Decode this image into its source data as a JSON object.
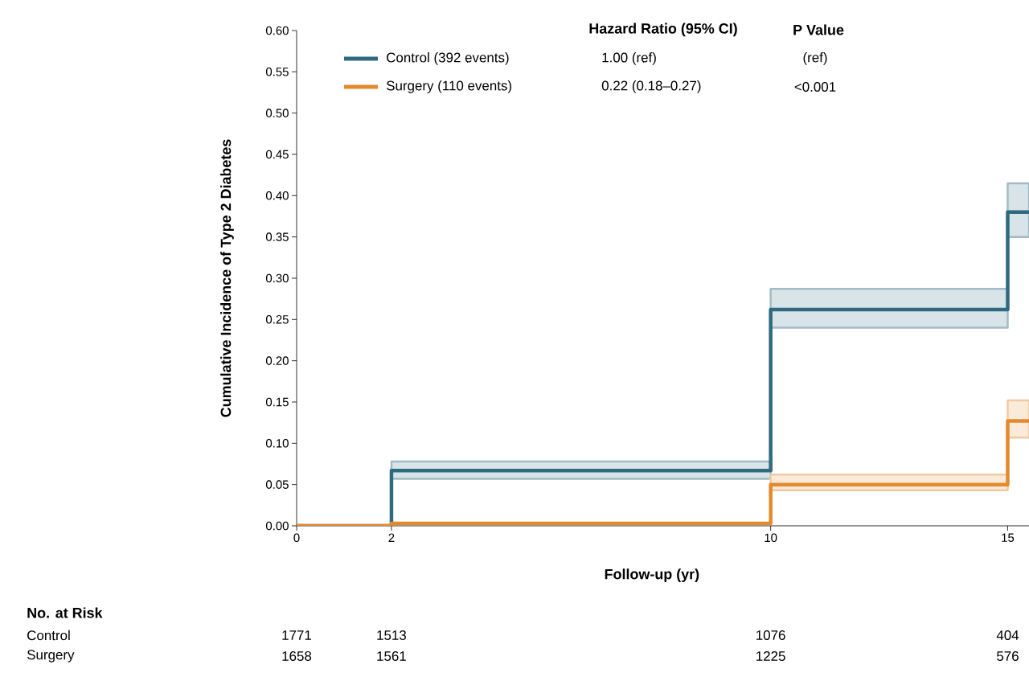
{
  "chart_data": {
    "type": "step",
    "xlabel": "Follow-up (yr)",
    "ylabel": "Cumulative Incidence of Type 2 Diabetes",
    "xlim": [
      0,
      15.45
    ],
    "xticks": [
      0,
      2,
      10,
      15
    ],
    "ylim": [
      0,
      0.6
    ],
    "yticks": [
      {
        "value": 0,
        "label": "0.00"
      },
      {
        "value": 0.05,
        "label": "0.05"
      },
      {
        "value": 0.1,
        "label": "0.10"
      },
      {
        "value": 0.15,
        "label": "0.15"
      },
      {
        "value": 0.2,
        "label": "0.20"
      },
      {
        "value": 0.25,
        "label": "0.25"
      },
      {
        "value": 0.3,
        "label": "0.30"
      },
      {
        "value": 0.35,
        "label": "0.35"
      },
      {
        "value": 0.4,
        "label": "0.40"
      },
      {
        "value": 0.45,
        "label": "0.45"
      },
      {
        "value": 0.5,
        "label": "0.50"
      },
      {
        "value": 0.55,
        "label": "0.55"
      },
      {
        "value": 0.6,
        "label": "0.60"
      }
    ],
    "legend": "top",
    "series": [
      {
        "name": "Control (392 events)",
        "color": "#2e6a80",
        "x": [
          0,
          2,
          10,
          15,
          15.45
        ],
        "values": [
          0,
          0.067,
          0.262,
          0.38,
          0.38
        ],
        "lower": [
          null,
          0.057,
          0.24,
          0.35,
          0.35
        ],
        "upper": [
          null,
          0.078,
          0.287,
          0.415,
          0.415
        ]
      },
      {
        "name": "Surgery (110 events)",
        "color": "#e38a2e",
        "x": [
          0,
          2,
          10,
          15,
          15.45
        ],
        "values": [
          0,
          0.003,
          0.05,
          0.127,
          0.127
        ],
        "lower": [
          null,
          null,
          0.043,
          0.107,
          0.107
        ],
        "upper": [
          null,
          null,
          0.062,
          0.152,
          0.152
        ]
      }
    ],
    "annotations": [
      "Hazard Ratio (95% CI)",
      "P Value",
      "1.00 (ref)",
      "(ref)",
      "0.22 (0.18–0.27)",
      "<0.001",
      "No. at Risk",
      "Control",
      "1771",
      "1513",
      "1076",
      "404",
      "Surgery",
      "1658",
      "1561",
      "1225",
      "576"
    ]
  }
}
